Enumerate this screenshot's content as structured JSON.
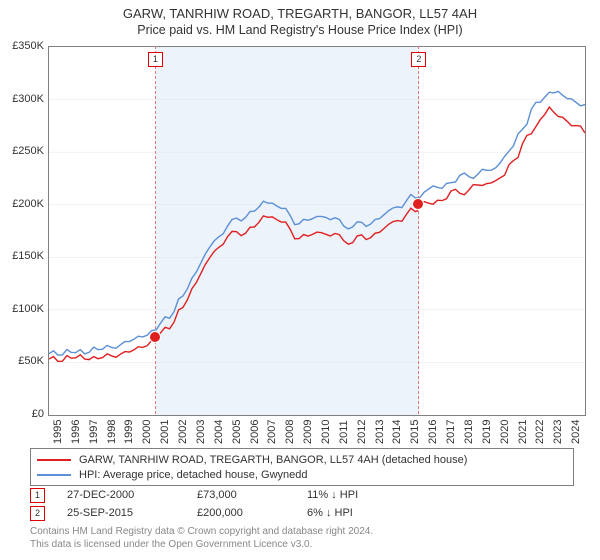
{
  "title": {
    "line1": "GARW, TANRHIW ROAD, TREGARTH, BANGOR, LL57 4AH",
    "line2": "Price paid vs. HM Land Registry's House Price Index (HPI)"
  },
  "chart": {
    "type": "line",
    "background_color": "#ffffff",
    "shaded_band_color": "#ecf3fa",
    "border_color": "#808080",
    "line_width": 1.4,
    "ylim": [
      0,
      350000
    ],
    "ytick_step": 50000,
    "ytick_labels": [
      "£0",
      "£50K",
      "£100K",
      "£150K",
      "£200K",
      "£250K",
      "£300K",
      "£350K"
    ],
    "x_start_year": 1995,
    "x_end_year": 2025,
    "xtick_labels": [
      "1995",
      "1996",
      "1997",
      "1998",
      "1999",
      "2000",
      "2001",
      "2002",
      "2003",
      "2004",
      "2005",
      "2006",
      "2007",
      "2008",
      "2009",
      "2010",
      "2011",
      "2012",
      "2013",
      "2014",
      "2015",
      "2016",
      "2017",
      "2018",
      "2019",
      "2020",
      "2021",
      "2022",
      "2023",
      "2024"
    ],
    "series": [
      {
        "name": "GARW, TANRHIW ROAD, TREGARTH, BANGOR, LL57 4AH (detached house)",
        "color": "#e02020",
        "values_by_year_fraction": [
          [
            1995.0,
            55000
          ],
          [
            1995.5,
            52000
          ],
          [
            1996.0,
            53000
          ],
          [
            1996.5,
            56000
          ],
          [
            1997.0,
            55000
          ],
          [
            1997.5,
            53000
          ],
          [
            1998.0,
            55000
          ],
          [
            1998.5,
            57000
          ],
          [
            1999.0,
            58000
          ],
          [
            1999.5,
            60000
          ],
          [
            2000.0,
            63000
          ],
          [
            2000.5,
            68000
          ],
          [
            2000.98,
            73000
          ],
          [
            2001.5,
            80000
          ],
          [
            2002.0,
            90000
          ],
          [
            2002.5,
            104000
          ],
          [
            2003.0,
            118000
          ],
          [
            2003.5,
            135000
          ],
          [
            2004.0,
            150000
          ],
          [
            2004.5,
            160000
          ],
          [
            2005.0,
            170000
          ],
          [
            2005.5,
            172000
          ],
          [
            2006.0,
            175000
          ],
          [
            2006.5,
            180000
          ],
          [
            2007.0,
            186000
          ],
          [
            2007.5,
            190000
          ],
          [
            2008.0,
            185000
          ],
          [
            2008.5,
            175000
          ],
          [
            2009.0,
            168000
          ],
          [
            2009.5,
            170000
          ],
          [
            2010.0,
            175000
          ],
          [
            2010.5,
            172000
          ],
          [
            2011.0,
            170000
          ],
          [
            2011.5,
            168000
          ],
          [
            2012.0,
            165000
          ],
          [
            2012.5,
            168000
          ],
          [
            2013.0,
            170000
          ],
          [
            2013.5,
            175000
          ],
          [
            2014.0,
            180000
          ],
          [
            2014.5,
            185000
          ],
          [
            2015.0,
            190000
          ],
          [
            2015.5,
            195000
          ],
          [
            2015.73,
            200000
          ],
          [
            2016.0,
            200000
          ],
          [
            2016.5,
            203000
          ],
          [
            2017.0,
            205000
          ],
          [
            2017.5,
            210000
          ],
          [
            2018.0,
            212000
          ],
          [
            2018.5,
            215000
          ],
          [
            2019.0,
            218000
          ],
          [
            2019.5,
            220000
          ],
          [
            2020.0,
            222000
          ],
          [
            2020.5,
            230000
          ],
          [
            2021.0,
            242000
          ],
          [
            2021.5,
            255000
          ],
          [
            2022.0,
            270000
          ],
          [
            2022.5,
            282000
          ],
          [
            2023.0,
            290000
          ],
          [
            2023.5,
            285000
          ],
          [
            2024.0,
            280000
          ],
          [
            2024.5,
            275000
          ],
          [
            2025.0,
            268000
          ]
        ]
      },
      {
        "name": "HPI: Average price, detached house, Gwynedd",
        "color": "#5b8fd6",
        "values_by_year_fraction": [
          [
            1995.0,
            60000
          ],
          [
            1995.5,
            58000
          ],
          [
            1996.0,
            59000
          ],
          [
            1996.5,
            61000
          ],
          [
            1997.0,
            60000
          ],
          [
            1997.5,
            62000
          ],
          [
            1998.0,
            63000
          ],
          [
            1998.5,
            65000
          ],
          [
            1999.0,
            67000
          ],
          [
            1999.5,
            70000
          ],
          [
            2000.0,
            73000
          ],
          [
            2000.5,
            78000
          ],
          [
            2001.0,
            82000
          ],
          [
            2001.5,
            90000
          ],
          [
            2002.0,
            100000
          ],
          [
            2002.5,
            115000
          ],
          [
            2003.0,
            128000
          ],
          [
            2003.5,
            145000
          ],
          [
            2004.0,
            160000
          ],
          [
            2004.5,
            170000
          ],
          [
            2005.0,
            180000
          ],
          [
            2005.5,
            185000
          ],
          [
            2006.0,
            190000
          ],
          [
            2006.5,
            195000
          ],
          [
            2007.0,
            200000
          ],
          [
            2007.5,
            203000
          ],
          [
            2008.0,
            198000
          ],
          [
            2008.5,
            188000
          ],
          [
            2009.0,
            182000
          ],
          [
            2009.5,
            185000
          ],
          [
            2010.0,
            190000
          ],
          [
            2010.5,
            188000
          ],
          [
            2011.0,
            185000
          ],
          [
            2011.5,
            182000
          ],
          [
            2012.0,
            180000
          ],
          [
            2012.5,
            180000
          ],
          [
            2013.0,
            183000
          ],
          [
            2013.5,
            188000
          ],
          [
            2014.0,
            193000
          ],
          [
            2014.5,
            198000
          ],
          [
            2015.0,
            203000
          ],
          [
            2015.5,
            208000
          ],
          [
            2016.0,
            212000
          ],
          [
            2016.5,
            215000
          ],
          [
            2017.0,
            218000
          ],
          [
            2017.5,
            222000
          ],
          [
            2018.0,
            225000
          ],
          [
            2018.5,
            228000
          ],
          [
            2019.0,
            230000
          ],
          [
            2019.5,
            232000
          ],
          [
            2020.0,
            235000
          ],
          [
            2020.5,
            245000
          ],
          [
            2021.0,
            258000
          ],
          [
            2021.5,
            272000
          ],
          [
            2022.0,
            288000
          ],
          [
            2022.5,
            300000
          ],
          [
            2023.0,
            308000
          ],
          [
            2023.5,
            305000
          ],
          [
            2024.0,
            302000
          ],
          [
            2024.5,
            298000
          ],
          [
            2025.0,
            295000
          ]
        ]
      }
    ],
    "markers": [
      {
        "id": "1",
        "year_fraction": 2000.98,
        "value": 73000
      },
      {
        "id": "2",
        "year_fraction": 2015.73,
        "value": 200000
      }
    ]
  },
  "legend": {
    "items": [
      {
        "color": "#e02020",
        "label": "GARW, TANRHIW ROAD, TREGARTH, BANGOR, LL57 4AH (detached house)"
      },
      {
        "color": "#5b8fd6",
        "label": "HPI: Average price, detached house, Gwynedd"
      }
    ]
  },
  "annotations": [
    {
      "marker": "1",
      "date": "27-DEC-2000",
      "price": "£73,000",
      "delta": "11% ↓ HPI"
    },
    {
      "marker": "2",
      "date": "25-SEP-2015",
      "price": "£200,000",
      "delta": "6% ↓ HPI"
    }
  ],
  "footer": {
    "line1": "Contains HM Land Registry data © Crown copyright and database right 2024.",
    "line2": "This data is licensed under the Open Government Licence v3.0."
  }
}
